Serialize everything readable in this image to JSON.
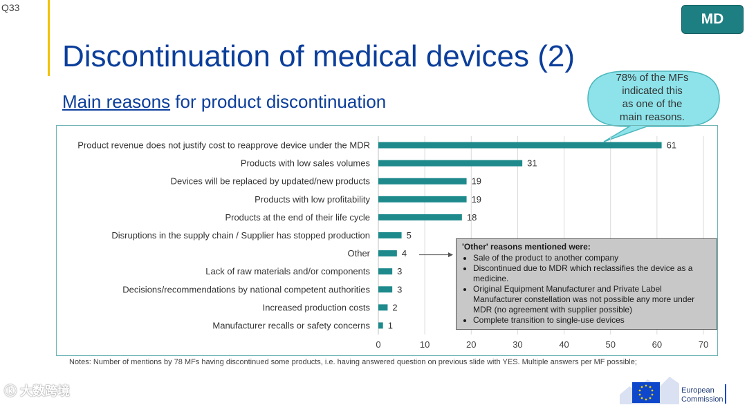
{
  "slide_number": "Q33",
  "badge": "MD",
  "title": "Discontinuation of medical devices (2)",
  "subtitle": {
    "underlined": "Main reasons",
    "rest": " for product discontinuation"
  },
  "callout": {
    "lines": [
      "78% of the MFs",
      "indicated this",
      "as one of the",
      "main reasons."
    ]
  },
  "other_box": {
    "heading": "'Other' reasons mentioned were:",
    "items": [
      "Sale of the product to another company",
      "Discontinued due to MDR which reclassifies the device as a medicine.",
      "Original Equipment Manufacturer and Private Label Manufacturer constellation was not possible any more under MDR (no agreement with supplier possible)",
      "Complete transition to single-use devices"
    ]
  },
  "notes": "Notes: Number of mentions by 78 MFs having discontinued some products, i.e. having answered question on previous slide with YES. Multiple answers per MF possible;",
  "watermark": "大数跨境",
  "footer": {
    "org_line1": "European",
    "org_line2": "Commission"
  },
  "colors": {
    "bar": "#1e8a8c",
    "title": "#0b3e9b",
    "badge": "#1e7f82",
    "callout": "#8ee3ea"
  },
  "chart_data": {
    "type": "bar",
    "orientation": "horizontal",
    "categories": [
      "Product revenue does not justify cost to reapprove device under the MDR",
      "Products with low sales volumes",
      "Devices will be replaced by updated/new products",
      "Products with low profitability",
      "Products at the end of their life cycle",
      "Disruptions in the supply chain / Supplier has stopped production",
      "Other",
      "Lack of raw materials and/or components",
      "Decisions/recommendations by national competent authorities",
      "Increased production costs",
      "Manufacturer recalls or safety concerns"
    ],
    "values": [
      61,
      31,
      19,
      19,
      18,
      5,
      4,
      3,
      3,
      2,
      1
    ],
    "xlim": [
      0,
      70
    ],
    "xticks": [
      0,
      10,
      20,
      30,
      40,
      50,
      60,
      70
    ],
    "grid": true,
    "title": "",
    "xlabel": "",
    "ylabel": ""
  }
}
